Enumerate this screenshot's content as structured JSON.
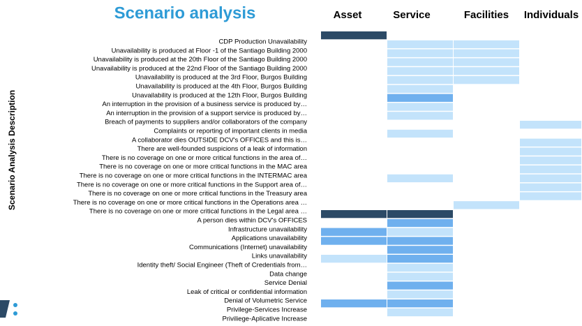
{
  "chart_data": {
    "type": "heatmap",
    "title": "Scenario analysis",
    "y_label": "Scenario Analysis Description",
    "columns": [
      "Asset",
      "Service",
      "Facilities",
      "Individuals"
    ],
    "categories": [
      "CDP Production Unavailability",
      "Unavailability is produced at Floor -1 of the Santiago Building 2000",
      "Unavailability is produced at the 20th Floor of the Santiago Building 2000",
      "Unavailability is produced at the 22nd Floor of the Santiago Building 2000",
      "Unavailability is produced at the 3rd Floor, Burgos Building",
      "Unavailability is produced at the 4th Floor, Burgos Building",
      "Unavailability is produced at the 12th Floor, Burgos Building",
      "An interruption in the provision of a business service is produced by…",
      "An interruption in the provision of a support service is produced by…",
      "Breach of payments to suppliers and/or collaborators of the company",
      "Complaints or reporting of important clients in media",
      "A collaborator dies OUTSIDE DCV's OFFICES and this is…",
      "There are well-founded suspicions of a leak of information",
      "There is no coverage on one or more critical functions in the area of…",
      "There is no coverage on one or more critical functions in the MAC area",
      "There is no coverage on one or more critical functions in the INTERMAC area",
      "There is no coverage on one or more critical functions in the Support area of…",
      "There is no coverage on one or more critical functions in the Treasury area",
      "There is no coverage on one or more critical functions in the Operations area …",
      "There is no coverage on one or more critical functions in the Legal area …",
      "A person dies within DCV's OFFICES",
      "Infrastructure unavailability",
      "Applications unavailability",
      "Communications (Internet) unavailability",
      "Links unavailability",
      "Identity theft/ Social Engineer (Theft of Credentials from…",
      "Data change",
      "Service Denial",
      "Leak of critical or confidential information",
      "Denial of Volumetric Service",
      "Privilege-Services Increase",
      "Priviliege-Aplicative Increase"
    ],
    "values": [
      [
        3,
        0,
        0,
        0
      ],
      [
        0,
        1,
        1,
        0
      ],
      [
        0,
        1,
        1,
        0
      ],
      [
        0,
        1,
        1,
        0
      ],
      [
        0,
        1,
        1,
        0
      ],
      [
        0,
        1,
        1,
        0
      ],
      [
        0,
        1,
        0,
        0
      ],
      [
        0,
        2,
        0,
        0
      ],
      [
        0,
        1,
        0,
        0
      ],
      [
        0,
        1,
        0,
        0
      ],
      [
        0,
        0,
        0,
        1
      ],
      [
        0,
        1,
        0,
        0
      ],
      [
        0,
        0,
        0,
        1
      ],
      [
        0,
        0,
        0,
        1
      ],
      [
        0,
        0,
        0,
        1
      ],
      [
        0,
        0,
        0,
        1
      ],
      [
        0,
        1,
        0,
        1
      ],
      [
        0,
        0,
        0,
        1
      ],
      [
        0,
        0,
        0,
        1
      ],
      [
        0,
        0,
        1,
        0
      ],
      [
        3,
        3,
        0,
        0
      ],
      [
        0,
        2,
        0,
        0
      ],
      [
        2,
        1,
        0,
        0
      ],
      [
        2,
        2,
        0,
        0
      ],
      [
        0,
        2,
        0,
        0
      ],
      [
        1,
        2,
        0,
        0
      ],
      [
        0,
        1,
        0,
        0
      ],
      [
        0,
        1,
        0,
        0
      ],
      [
        0,
        2,
        0,
        0
      ],
      [
        0,
        1,
        0,
        0
      ],
      [
        2,
        2,
        0,
        0
      ],
      [
        0,
        1,
        0,
        0
      ]
    ],
    "colors": [
      "#ffffff",
      "#c3e3fb",
      "#6fb0ee",
      "#2c4a66"
    ],
    "title_color": "#2e9bd6"
  }
}
